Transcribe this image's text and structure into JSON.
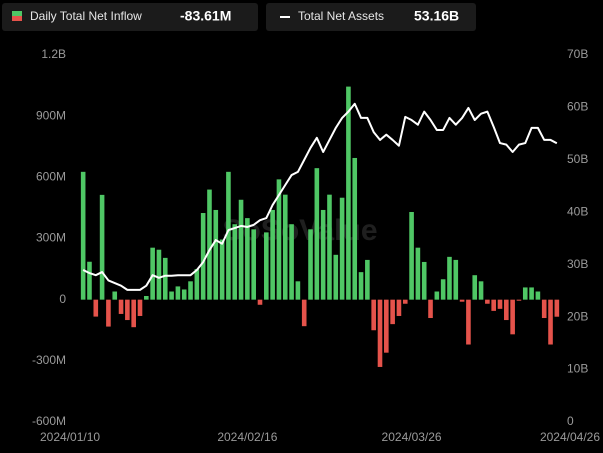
{
  "chart_data": {
    "type": "bar-line",
    "watermark": "SoSoValue",
    "categories": [
      "2024/01/10",
      null,
      null,
      null,
      null,
      null,
      null,
      null,
      null,
      null,
      null,
      null,
      null,
      null,
      null,
      null,
      null,
      null,
      null,
      null,
      null,
      null,
      null,
      null,
      null,
      null,
      "2024/02/16",
      null,
      null,
      null,
      null,
      null,
      null,
      null,
      null,
      null,
      null,
      null,
      null,
      null,
      null,
      null,
      null,
      null,
      null,
      null,
      null,
      null,
      null,
      null,
      null,
      null,
      "2024/03/26",
      null,
      null,
      null,
      null,
      null,
      null,
      null,
      null,
      null,
      null,
      null,
      null,
      null,
      null,
      null,
      null,
      null,
      null,
      null,
      null,
      null,
      null,
      "2024/04/26"
    ],
    "series": [
      {
        "name": "Daily Total Net Inflow",
        "legend_value": "-83.61M",
        "color_up": "#4fc765",
        "color_down": "#e5534b",
        "values": [
          627,
          186,
          -83,
          514,
          -132,
          40,
          -70,
          -100,
          -135,
          -80,
          18,
          255,
          245,
          205,
          40,
          65,
          50,
          90,
          150,
          425,
          540,
          440,
          295,
          627,
          370,
          490,
          400,
          345,
          -25,
          330,
          440,
          590,
          515,
          370,
          90,
          -130,
          345,
          645,
          440,
          515,
          220,
          500,
          1045,
          695,
          135,
          195,
          -150,
          -330,
          -260,
          -120,
          -80,
          -20,
          430,
          255,
          185,
          -90,
          40,
          100,
          210,
          195,
          -10,
          -220,
          120,
          90,
          -20,
          -55,
          -45,
          -100,
          -170,
          -5,
          60,
          60,
          40,
          -90,
          -220,
          -83.61
        ]
      },
      {
        "name": "Total Net Assets",
        "legend_value": "53.16B",
        "color": "#ffffff",
        "axis": "y2",
        "values": [
          29,
          28.4,
          28,
          28.6,
          27,
          26.5,
          26,
          25.2,
          25.2,
          25.2,
          26,
          28,
          27.5,
          27.9,
          27.9,
          28,
          28,
          28,
          29,
          30.5,
          32.8,
          34.7,
          34,
          36.6,
          37,
          37.4,
          37.2,
          37.6,
          38.5,
          38.9,
          41.4,
          43.3,
          45.2,
          47.1,
          47.7,
          50,
          52.3,
          54.2,
          51.5,
          53.8,
          56.1,
          58,
          59.2,
          60.7,
          58,
          58,
          55.3,
          53.8,
          54.8,
          53.8,
          52.7,
          58.2,
          57.6,
          56.7,
          59.2,
          57.6,
          55.7,
          55.7,
          58,
          56.7,
          58,
          59.9,
          57.6,
          58.8,
          59.2,
          56.3,
          53.2,
          52.9,
          51.5,
          52.9,
          53.2,
          56.1,
          56.1,
          53.8,
          53.8,
          53.16
        ]
      }
    ],
    "ylim": [
      -600,
      1200
    ],
    "yticks": [
      {
        "value": 1200,
        "label": "1.2B"
      },
      {
        "value": 900,
        "label": "900M"
      },
      {
        "value": 600,
        "label": "600M"
      },
      {
        "value": 300,
        "label": "300M"
      },
      0,
      {
        "value": -300,
        "label": "-300M"
      },
      {
        "value": -600,
        "label": "-600M"
      }
    ],
    "y2lim": [
      0,
      70
    ],
    "y2ticks": [
      {
        "value": 70,
        "label": "70B"
      },
      {
        "value": 60,
        "label": "60B"
      },
      {
        "value": 50,
        "label": "50B"
      },
      {
        "value": 40,
        "label": "40B"
      },
      {
        "value": 30,
        "label": "30B"
      },
      {
        "value": 20,
        "label": "20B"
      },
      {
        "value": 10,
        "label": "10B"
      },
      0
    ],
    "grid": false
  }
}
